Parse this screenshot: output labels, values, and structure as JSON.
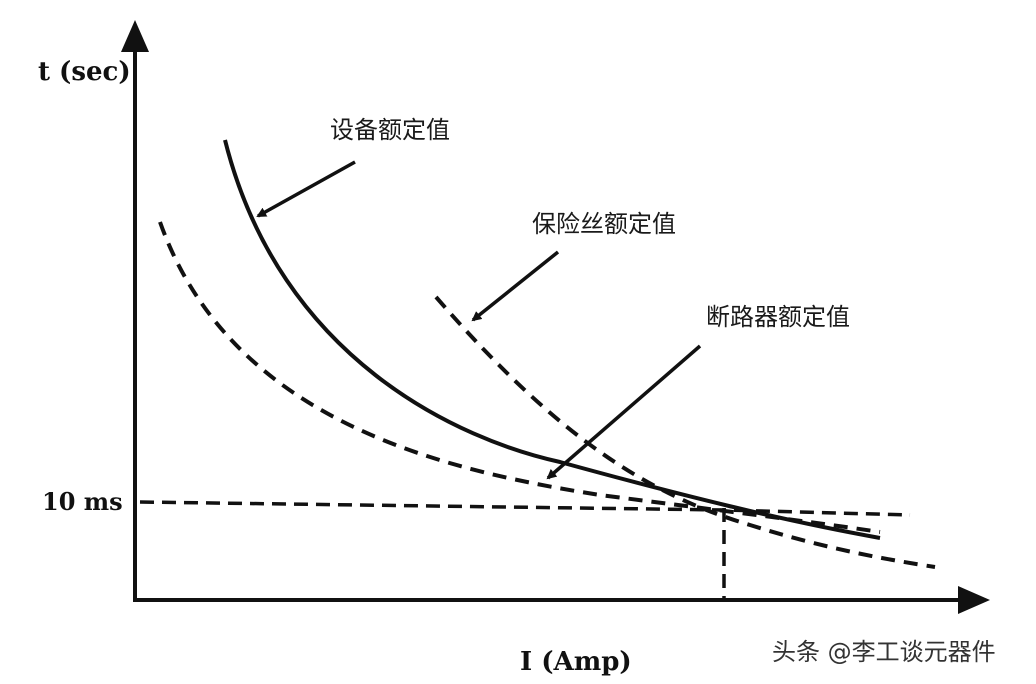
{
  "axes": {
    "y_label": "t (sec)",
    "x_label": "I (Amp)",
    "y_tick": "10 ms"
  },
  "annotations": {
    "equipment": "设备额定值",
    "fuse": "保险丝额定值",
    "breaker": "断路器额定值"
  },
  "watermark": {
    "source": "头条 @李工谈元器件"
  },
  "style": {
    "line_color": "#111111",
    "background": "#ffffff"
  }
}
